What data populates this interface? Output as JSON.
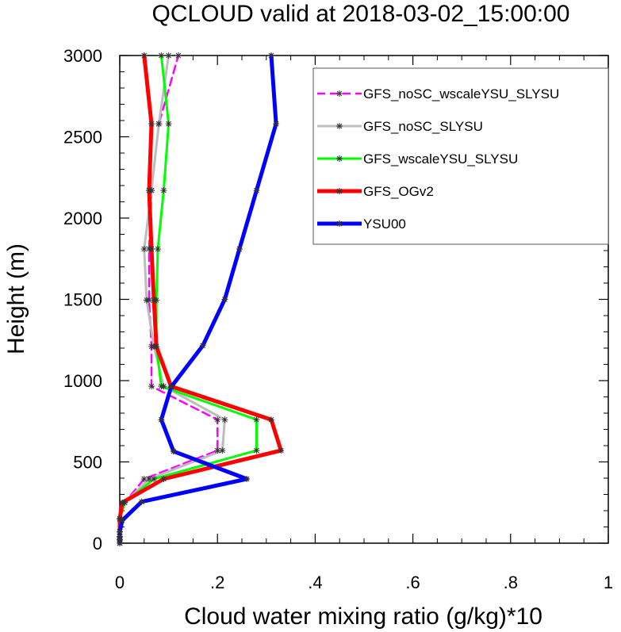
{
  "chart_data": {
    "type": "line",
    "title": "QCLOUD valid at 2018-03-02_15:00:00",
    "xlabel": "Cloud water mixing ratio (g/kg)*10",
    "ylabel": "Height (m)",
    "xlim": [
      0,
      1
    ],
    "ylim": [
      0,
      3000
    ],
    "xticks": [
      "0",
      ".2",
      ".4",
      ".6",
      ".8",
      "1"
    ],
    "yticks": [
      "0",
      "500",
      "1000",
      "1500",
      "2000",
      "2500",
      "3000"
    ],
    "grid": false,
    "legend_position": "top-right",
    "series": [
      {
        "name": "GFS_noSC_wscaleYSU_SLYSU",
        "color": "#ff00ff",
        "dash": "dash",
        "points": [
          [
            0,
            0
          ],
          [
            0,
            20
          ],
          [
            0,
            40
          ],
          [
            0,
            70
          ],
          [
            0,
            150
          ],
          [
            0.01,
            250
          ],
          [
            0.05,
            395
          ],
          [
            0.2,
            570
          ],
          [
            0.2,
            760
          ],
          [
            0.065,
            965
          ],
          [
            0.065,
            1210
          ],
          [
            0.06,
            1495
          ],
          [
            0.06,
            1810
          ],
          [
            0.065,
            2170
          ],
          [
            0.08,
            2580
          ],
          [
            0.12,
            3000
          ]
        ]
      },
      {
        "name": "GFS_noSC_SLYSU",
        "color": "#bdbdbd",
        "dash": "solid",
        "points": [
          [
            0,
            0
          ],
          [
            0,
            20
          ],
          [
            0,
            40
          ],
          [
            0,
            70
          ],
          [
            0,
            150
          ],
          [
            0.01,
            250
          ],
          [
            0.06,
            395
          ],
          [
            0.21,
            570
          ],
          [
            0.215,
            760
          ],
          [
            0.09,
            965
          ],
          [
            0.07,
            1210
          ],
          [
            0.055,
            1495
          ],
          [
            0.05,
            1810
          ],
          [
            0.065,
            2170
          ],
          [
            0.08,
            2580
          ],
          [
            0.1,
            3000
          ]
        ]
      },
      {
        "name": "GFS_wscaleYSU_SLYSU",
        "color": "#00ff00",
        "dash": "solid",
        "points": [
          [
            0,
            0
          ],
          [
            0,
            20
          ],
          [
            0,
            40
          ],
          [
            0,
            70
          ],
          [
            0,
            150
          ],
          [
            0.01,
            250
          ],
          [
            0.07,
            395
          ],
          [
            0.28,
            570
          ],
          [
            0.28,
            760
          ],
          [
            0.085,
            965
          ],
          [
            0.075,
            1210
          ],
          [
            0.075,
            1495
          ],
          [
            0.078,
            1810
          ],
          [
            0.09,
            2170
          ],
          [
            0.1,
            2580
          ],
          [
            0.085,
            3000
          ]
        ]
      },
      {
        "name": "GFS_OGv2",
        "color": "#ff0000",
        "dash": "solid",
        "points": [
          [
            0,
            0
          ],
          [
            0,
            20
          ],
          [
            0,
            40
          ],
          [
            0,
            70
          ],
          [
            0,
            150
          ],
          [
            0.005,
            250
          ],
          [
            0.09,
            395
          ],
          [
            0.33,
            570
          ],
          [
            0.31,
            760
          ],
          [
            0.105,
            965
          ],
          [
            0.075,
            1210
          ],
          [
            0.07,
            1495
          ],
          [
            0.065,
            1810
          ],
          [
            0.06,
            2170
          ],
          [
            0.065,
            2580
          ],
          [
            0.05,
            3000
          ]
        ]
      },
      {
        "name": "YSU00",
        "color": "#0000ff",
        "dash": "solid",
        "points": [
          [
            0,
            0
          ],
          [
            0,
            20
          ],
          [
            0,
            40
          ],
          [
            0,
            70
          ],
          [
            0.005,
            140
          ],
          [
            0.045,
            255
          ],
          [
            0.26,
            395
          ],
          [
            0.11,
            565
          ],
          [
            0.085,
            760
          ],
          [
            0.105,
            960
          ],
          [
            0.17,
            1215
          ],
          [
            0.215,
            1500
          ],
          [
            0.245,
            1810
          ],
          [
            0.28,
            2170
          ],
          [
            0.32,
            2580
          ],
          [
            0.31,
            3000
          ]
        ]
      }
    ]
  }
}
